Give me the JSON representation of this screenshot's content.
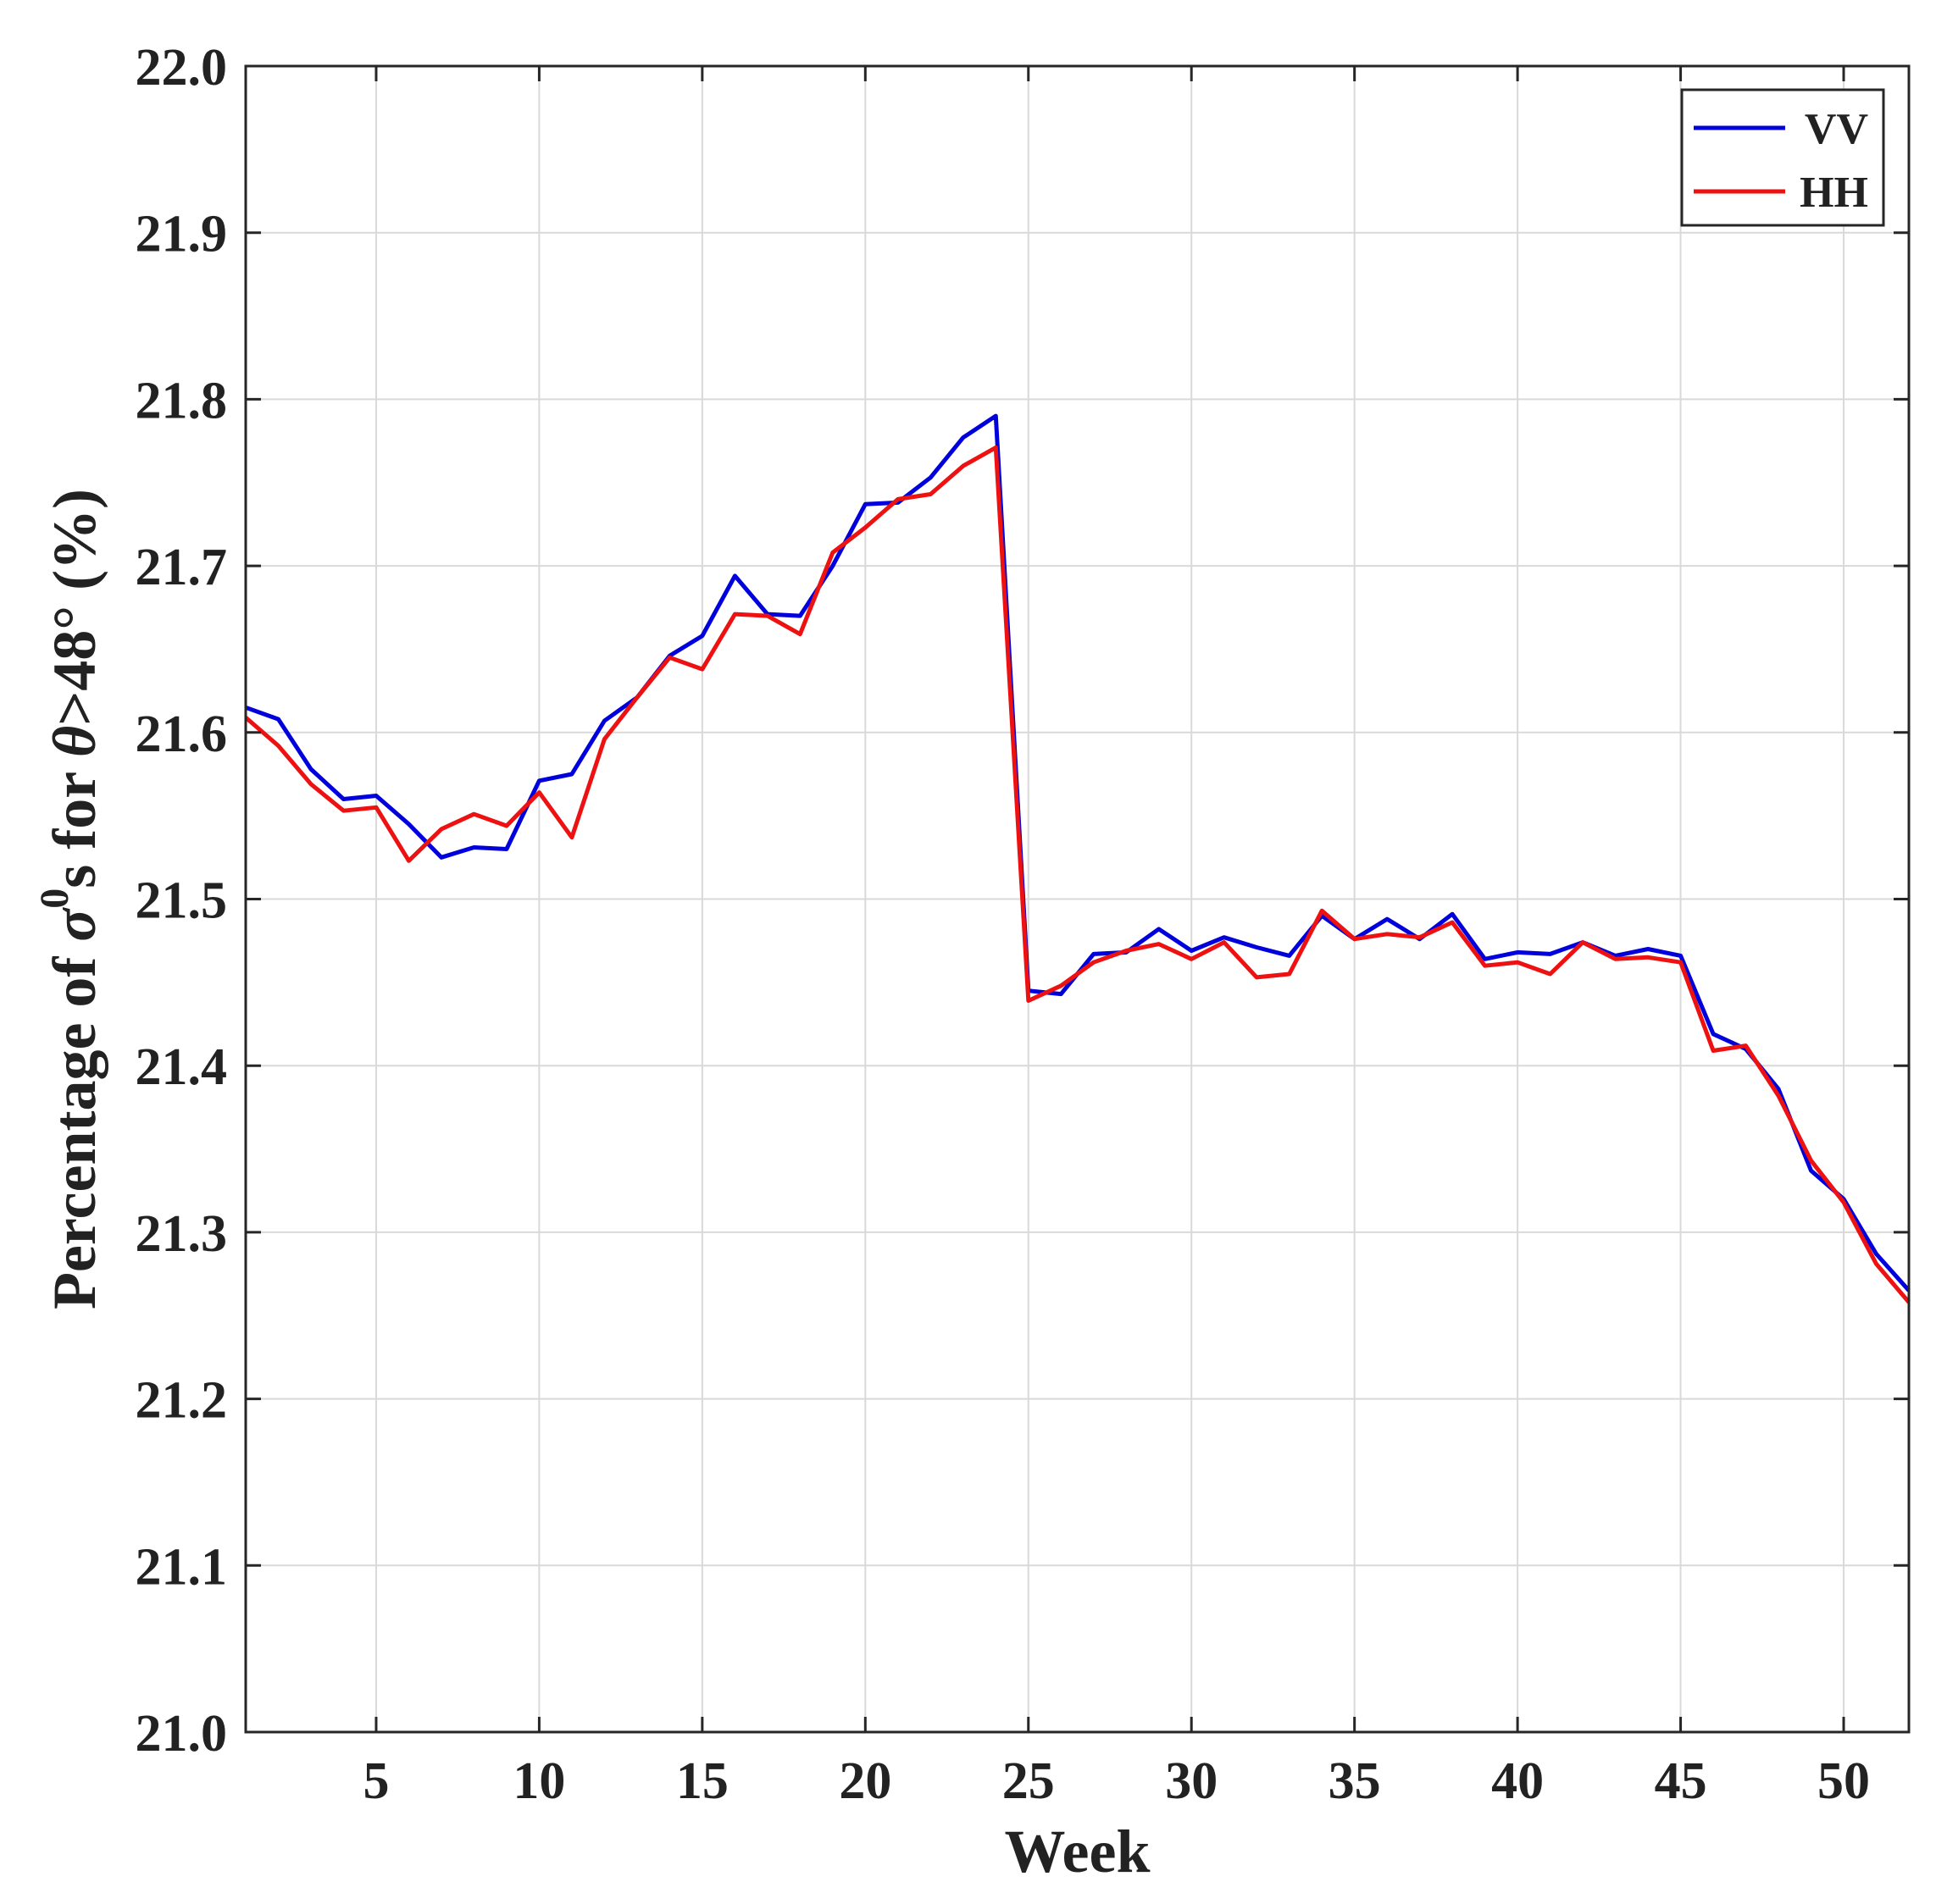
{
  "chart_data": {
    "type": "line",
    "title": "",
    "xlabel": "Week",
    "ylabel": {
      "prefix": "Percentage of ",
      "sigma": "σ",
      "superscript": "0",
      "middle": "s for ",
      "theta": "θ",
      "suffix": ">48° (%)"
    },
    "xlim": [
      1,
      52
    ],
    "ylim": [
      21.0,
      22.0
    ],
    "xticks": [
      5,
      10,
      15,
      20,
      25,
      30,
      35,
      40,
      45,
      50
    ],
    "yticks": [
      "21.0",
      "21.1",
      "21.2",
      "21.3",
      "21.4",
      "21.5",
      "21.6",
      "21.7",
      "21.8",
      "21.9",
      "22.0"
    ],
    "grid": true,
    "legend_position": "top-right",
    "x": [
      1,
      2,
      3,
      4,
      5,
      6,
      7,
      8,
      9,
      10,
      11,
      12,
      13,
      14,
      15,
      16,
      17,
      18,
      19,
      20,
      21,
      22,
      23,
      24,
      25,
      26,
      27,
      28,
      29,
      30,
      31,
      32,
      33,
      34,
      35,
      36,
      37,
      38,
      39,
      40,
      41,
      42,
      43,
      44,
      45,
      46,
      47,
      48,
      49,
      50,
      51,
      52
    ],
    "series": [
      {
        "name": "VV",
        "color": "#0000dd",
        "values": [
          21.615,
          21.608,
          21.578,
          21.56,
          21.562,
          21.545,
          21.525,
          21.531,
          21.53,
          21.571,
          21.575,
          21.607,
          21.621,
          21.646,
          21.658,
          21.694,
          21.671,
          21.67,
          21.7,
          21.737,
          21.738,
          21.753,
          21.777,
          21.79,
          21.445,
          21.443,
          21.467,
          21.468,
          21.482,
          21.469,
          21.477,
          21.471,
          21.466,
          21.49,
          21.476,
          21.488,
          21.476,
          21.491,
          21.464,
          21.468,
          21.467,
          21.474,
          21.466,
          21.47,
          21.466,
          21.419,
          21.41,
          21.386,
          21.337,
          21.32,
          21.287,
          21.265
        ]
      },
      {
        "name": "HH",
        "color": "#ee1111",
        "values": [
          21.609,
          21.592,
          21.569,
          21.553,
          21.555,
          21.523,
          21.542,
          21.551,
          21.544,
          21.564,
          21.537,
          21.596,
          21.621,
          21.645,
          21.638,
          21.671,
          21.67,
          21.659,
          21.708,
          21.723,
          21.74,
          21.743,
          21.76,
          21.771,
          21.439,
          21.448,
          21.462,
          21.469,
          21.473,
          21.464,
          21.474,
          21.453,
          21.455,
          21.493,
          21.476,
          21.479,
          21.477,
          21.486,
          21.46,
          21.462,
          21.455,
          21.474,
          21.464,
          21.465,
          21.462,
          21.409,
          21.412,
          21.382,
          21.343,
          21.318,
          21.281,
          21.258
        ]
      }
    ]
  }
}
